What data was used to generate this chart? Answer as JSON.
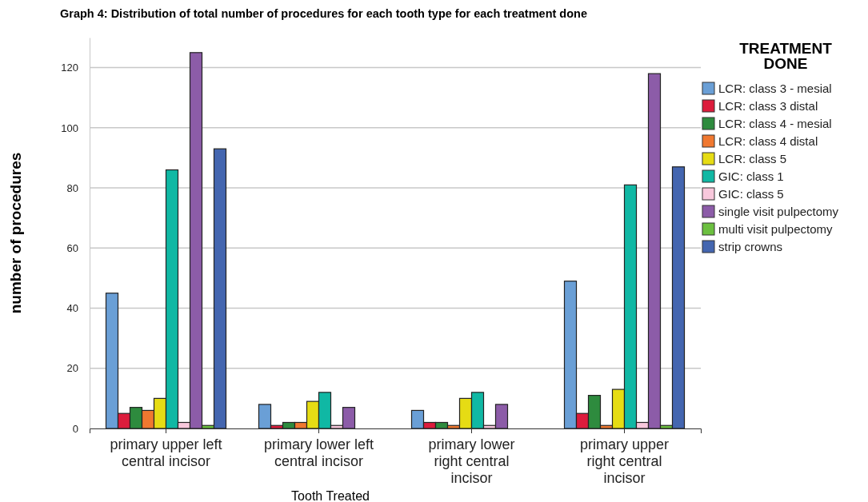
{
  "chart_data": {
    "type": "bar",
    "title": "Graph 4: Distribution of total number of procedures for each tooth type for each treatment done",
    "xlabel": "Tooth Treated",
    "ylabel": "number of procedures",
    "legend_title": "TREATMENT DONE",
    "legend": "right",
    "grid": "y",
    "categories": [
      "primary upper left central incisor",
      "primary lower left central incisor",
      "primary lower right central incisor",
      "primary upper right central incisor"
    ],
    "ylim": [
      0,
      130
    ],
    "yticks": [
      0,
      20,
      40,
      60,
      80,
      100,
      120
    ],
    "series": [
      {
        "name": "LCR: class 3 - mesial",
        "color": "#6a9fd6",
        "values": [
          45,
          8,
          6,
          49
        ]
      },
      {
        "name": "LCR: class 3 distal",
        "color": "#dc1c3c",
        "values": [
          5,
          1,
          2,
          5
        ]
      },
      {
        "name": "LCR: class 4 - mesial",
        "color": "#2e8b3e",
        "values": [
          7,
          2,
          2,
          11
        ]
      },
      {
        "name": "LCR: class 4 distal",
        "color": "#f07830",
        "values": [
          6,
          2,
          1,
          1
        ]
      },
      {
        "name": "LCR: class 5",
        "color": "#e6dc14",
        "values": [
          10,
          9,
          10,
          13
        ]
      },
      {
        "name": "GIC: class 1",
        "color": "#10b8a4",
        "values": [
          86,
          12,
          12,
          81
        ]
      },
      {
        "name": "GIC: class 5",
        "color": "#f8c8dc",
        "values": [
          2,
          1,
          1,
          2
        ]
      },
      {
        "name": "single visit pulpectomy",
        "color": "#8c5ca8",
        "values": [
          125,
          7,
          8,
          118
        ]
      },
      {
        "name": "multi visit pulpectomy",
        "color": "#6cc040",
        "values": [
          1,
          null,
          null,
          1
        ]
      },
      {
        "name": "strip crowns",
        "color": "#4466b0",
        "values": [
          93,
          null,
          null,
          87
        ]
      }
    ]
  }
}
